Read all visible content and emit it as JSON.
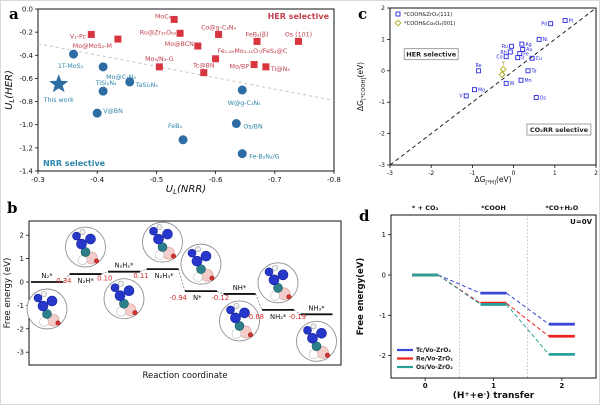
{
  "figure": {
    "background": "#ffffff",
    "border_color": "#d9d9d9"
  },
  "panel_letters": {
    "a": "a",
    "b": "b",
    "c": "c",
    "d": "d"
  },
  "chart_data": [
    {
      "id": "a",
      "type": "scatter",
      "xlabel": "U_{L}(NRR)",
      "ylabel": "U_{L}(HER)",
      "xlim": [
        -0.3,
        -0.8
      ],
      "ylim": [
        0.0,
        -1.4
      ],
      "xticks": [
        "-0.3",
        "-0.4",
        "-0.5",
        "-0.6",
        "-0.7",
        "-0.8"
      ],
      "yticks": [
        "0.0",
        "-0.2",
        "-0.4",
        "-0.6",
        "-0.8",
        "-1.0",
        "-1.2",
        "-1.4"
      ],
      "region_labels": {
        "top_right": "HER selective",
        "bottom_left": "NRR selective"
      },
      "region_colors": {
        "top_right": "#c0424e",
        "bottom_left": "#2e86ab"
      },
      "boundary_line": {
        "x1": -0.3,
        "y1": -0.3,
        "x2": -0.8,
        "y2": -0.79,
        "color": "#c4c4c4",
        "style": "dashed"
      },
      "series": [
        {
          "name": "HER selective",
          "marker": "square",
          "color": "#d9353f",
          "label_color": "#c0424e",
          "points": [
            {
              "x": -0.53,
              "y": -0.09,
              "label": "MoC₆",
              "anchor": "end",
              "ldx": -3,
              "ldy": -3
            },
            {
              "x": -0.39,
              "y": -0.22,
              "label": "V₂-Pc",
              "anchor": "end",
              "ldx": -5,
              "ldy": 2
            },
            {
              "x": -0.54,
              "y": -0.21,
              "label": "Ru@Zr₃₂O₆₃",
              "anchor": "end",
              "ldx": -4,
              "ldy": -1
            },
            {
              "x": -0.435,
              "y": -0.26,
              "label": "Mo@MoS₂-M",
              "anchor": "end",
              "ldx": -6,
              "ldy": 7
            },
            {
              "x": -0.605,
              "y": -0.22,
              "label": "Co@g-C₃N₄",
              "anchor": "middle",
              "ldx": 0,
              "ldy": -7
            },
            {
              "x": -0.57,
              "y": -0.32,
              "label": "Mo@BCN",
              "anchor": "end",
              "ldx": -4,
              "ldy": -2
            },
            {
              "x": -0.6,
              "y": -0.43,
              "label": "Fe₁.₈₉Mo₄.₁₁O₇/FeS₂@C",
              "anchor": "start",
              "ldx": 2,
              "ldy": -8
            },
            {
              "x": -0.505,
              "y": -0.5,
              "label": "Mo₃/N₃-G",
              "anchor": "middle",
              "ldx": 0,
              "ldy": -8
            },
            {
              "x": -0.58,
              "y": -0.55,
              "label": "Tc@BN",
              "anchor": "middle",
              "ldx": 0,
              "ldy": -7
            },
            {
              "x": -0.67,
              "y": -0.28,
              "label": "FeB₂(β)",
              "anchor": "middle",
              "ldx": 0,
              "ldy": -7
            },
            {
              "x": -0.74,
              "y": -0.28,
              "label": "Os (101)",
              "anchor": "middle",
              "ldx": 0,
              "ldy": -7
            },
            {
              "x": -0.665,
              "y": -0.48,
              "label": "Mo/BP",
              "anchor": "end",
              "ldx": -5,
              "ldy": 2
            },
            {
              "x": -0.685,
              "y": -0.5,
              "label": "Ti@N₄",
              "anchor": "start",
              "ldx": 5,
              "ldy": 2
            }
          ]
        },
        {
          "name": "NRR selective",
          "marker": "circle",
          "color": "#2e6da4",
          "label_color": "#2e86ab",
          "points": [
            {
              "x": -0.36,
              "y": -0.39,
              "label": "1T-MoS₂",
              "anchor": "middle",
              "ldx": -3,
              "ldy": 12
            },
            {
              "x": -0.41,
              "y": -0.5,
              "label": "Mo@C₃N₄",
              "anchor": "start",
              "ldx": 3,
              "ldy": 10
            },
            {
              "x": -0.41,
              "y": -0.71,
              "label": "TiSi₂N₄",
              "anchor": "middle",
              "ldx": 3,
              "ldy": -8
            },
            {
              "x": -0.455,
              "y": -0.63,
              "label": "TaSi₂N₄",
              "anchor": "start",
              "ldx": 6,
              "ldy": 3
            },
            {
              "x": -0.4,
              "y": -0.9,
              "label": "V@BN",
              "anchor": "start",
              "ldx": 6,
              "ldy": -2
            },
            {
              "x": -0.545,
              "y": -1.13,
              "label": "FeB₄",
              "anchor": "middle",
              "ldx": -8,
              "ldy": -14
            },
            {
              "x": -0.645,
              "y": -0.7,
              "label": "W@g-C₃N₄",
              "anchor": "middle",
              "ldx": 2,
              "ldy": 13
            },
            {
              "x": -0.635,
              "y": -0.99,
              "label": "Os/BN",
              "anchor": "start",
              "ldx": 7,
              "ldy": 3
            },
            {
              "x": -0.645,
              "y": -1.25,
              "label": "Fe-B₂N₂/G",
              "anchor": "start",
              "ldx": 7,
              "ldy": 3
            }
          ]
        },
        {
          "name": "This work",
          "marker": "star",
          "color": "#2e6da4",
          "label_color": "#2e86ab",
          "points": [
            {
              "x": -0.335,
              "y": -0.65,
              "label": "This work",
              "anchor": "middle",
              "ldx": 0,
              "ldy": 16
            }
          ]
        }
      ]
    },
    {
      "id": "b",
      "type": "energy-steps",
      "xlabel": "Reaction coordinate",
      "ylabel": "Free energy  (eV)",
      "yticks": [
        "2",
        "1",
        "0",
        "-1",
        "-2",
        "-3"
      ],
      "step_color": "#111111",
      "change_color": "#d42a2a",
      "steps": [
        {
          "species": "N₂*",
          "G": 0.0,
          "label_pos": "above"
        },
        {
          "species": "N₂H*",
          "G": 0.34,
          "label_pos": "below"
        },
        {
          "species": "N₂H₂*",
          "G": 0.44,
          "label_pos": "above"
        },
        {
          "species": "N₂H₃*",
          "G": 0.55,
          "label_pos": "below"
        },
        {
          "species": "N*",
          "G": -0.39,
          "label_pos": "below"
        },
        {
          "species": "NH*",
          "G": -0.51,
          "label_pos": "above"
        },
        {
          "species": "NH₂*",
          "G": -1.19,
          "label_pos": "below"
        },
        {
          "species": "NH₃*",
          "G": -1.38,
          "label_pos": "above"
        }
      ],
      "step_changes": [
        "0.34",
        "0.10",
        "0.11",
        "-0.94",
        "-0.12",
        "-0.68",
        "-0.19"
      ],
      "insets": [
        {
          "pos": "below"
        },
        {
          "pos": "above"
        },
        {
          "pos": "below"
        },
        {
          "pos": "above"
        },
        {
          "pos": "above"
        },
        {
          "pos": "below"
        },
        {
          "pos": "above"
        },
        {
          "pos": "below"
        }
      ]
    },
    {
      "id": "c",
      "type": "scatter",
      "xlabel": "ΔG_{[*H]}(eV)",
      "ylabel": "ΔG_{[*COOH]}(eV)",
      "xlim": [
        -3,
        2
      ],
      "ylim": [
        2,
        -3
      ],
      "xticks": [
        "-3",
        "-2",
        "-1",
        "0",
        "1",
        "2"
      ],
      "yticks": [
        "2",
        "1",
        "0",
        "-1",
        "-2",
        "-3"
      ],
      "parity_line": {
        "x1": -3,
        "y1": -3,
        "x2": 2,
        "y2": 2,
        "color": "#222222",
        "style": "dashed"
      },
      "region_labels": {
        "upper_left": "HER selective",
        "lower_right": "CO₂RR selective"
      },
      "legend": [
        {
          "marker": "square",
          "color": "#2a2ae0",
          "label": "*COOH&ZrO₂(111)"
        },
        {
          "marker": "diamond",
          "color": "#b0a818",
          "label": "*COOH&Co₃O₄(001)"
        }
      ],
      "series": [
        {
          "name": "*COOH&ZrO₂(111)",
          "marker": "square",
          "color": "#2a2ae0",
          "label_color": "#2a2ae0",
          "points": [
            {
              "x": 1.25,
              "y": 1.6,
              "label": "Pt",
              "anchor": "start"
            },
            {
              "x": 0.9,
              "y": 1.5,
              "label": "Pd",
              "anchor": "end"
            },
            {
              "x": 0.62,
              "y": 1.0,
              "label": "Ni",
              "anchor": "start"
            },
            {
              "x": 0.2,
              "y": 0.85,
              "label": "Ag",
              "anchor": "start"
            },
            {
              "x": -0.05,
              "y": 0.78,
              "label": "Ru",
              "anchor": "end"
            },
            {
              "x": 0.22,
              "y": 0.68,
              "label": "Au",
              "anchor": "start"
            },
            {
              "x": -0.08,
              "y": 0.6,
              "label": "Rh",
              "anchor": "end"
            },
            {
              "x": 0.15,
              "y": 0.55,
              "label": "Fe",
              "anchor": "start"
            },
            {
              "x": -0.18,
              "y": 0.45,
              "label": "Co",
              "anchor": "end"
            },
            {
              "x": 0.1,
              "y": 0.42,
              "label": "Ir",
              "anchor": "start"
            },
            {
              "x": 0.45,
              "y": 0.4,
              "label": "Cu",
              "anchor": "start"
            },
            {
              "x": 0.35,
              "y": 0.0,
              "label": "Ta",
              "anchor": "start"
            },
            {
              "x": -0.85,
              "y": 0.0,
              "label": "Re",
              "anchor": "middle",
              "ldy": -4
            },
            {
              "x": 0.18,
              "y": -0.3,
              "label": "Mn",
              "anchor": "start"
            },
            {
              "x": -0.18,
              "y": -0.4,
              "label": "W",
              "anchor": "start"
            },
            {
              "x": -0.95,
              "y": -0.6,
              "label": "Mo",
              "anchor": "start"
            },
            {
              "x": -1.15,
              "y": -0.8,
              "label": "V",
              "anchor": "end"
            },
            {
              "x": 0.55,
              "y": -0.85,
              "label": "Os",
              "anchor": "start"
            }
          ]
        },
        {
          "name": "*COOH&Co₃O₄(001)",
          "marker": "diamond",
          "color": "#b0a818",
          "label_color": "#8a8210",
          "points": [
            {
              "x": -0.25,
              "y": 0.05,
              "label": "Y",
              "anchor": "middle",
              "ldy": -4
            },
            {
              "x": -0.28,
              "y": -0.12,
              "label": "",
              "anchor": "start"
            }
          ]
        }
      ]
    },
    {
      "id": "d",
      "type": "energy-steps-multi",
      "xlabel": "(H^{+}+e^{-}) transfer",
      "ylabel": "Free energy(eV)",
      "xticks": [
        "0",
        "1",
        "2"
      ],
      "yticks": [
        "1",
        "0",
        "-1",
        "-2"
      ],
      "top_labels": [
        "* + CO₂",
        "*COOH",
        "*CO+H₂O"
      ],
      "annotation": "U=0V",
      "dividers": [
        0.5,
        1.5
      ],
      "series": [
        {
          "name": "Tc/Vo-ZrO₂",
          "color": "#3b48d6",
          "values": [
            0,
            -0.45,
            -1.22
          ]
        },
        {
          "name": "Re/Vo-ZrO₂",
          "color": "#ee2222",
          "values": [
            0,
            -0.7,
            -1.52
          ]
        },
        {
          "name": "Os/Vo-ZrO₂",
          "color": "#2aa198",
          "values": [
            0,
            -0.73,
            -1.97
          ]
        }
      ]
    }
  ]
}
